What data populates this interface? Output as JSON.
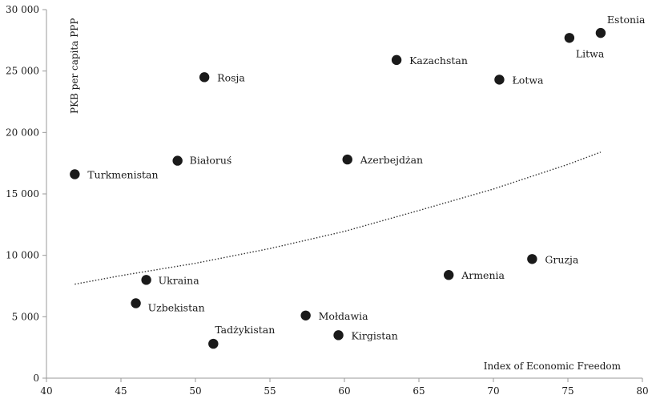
{
  "chart_data": {
    "type": "scatter",
    "title": "",
    "xlabel": "Index of Economic Freedom",
    "ylabel": "PKB per capita PPP",
    "xlim": [
      40,
      80
    ],
    "ylim": [
      0,
      30000
    ],
    "x_ticks": [
      "40",
      "45",
      "50",
      "55",
      "60",
      "65",
      "70",
      "75",
      "80"
    ],
    "y_ticks": [
      "0",
      "5 000",
      "10 000",
      "15 000",
      "20 000",
      "25 000",
      "30 000"
    ],
    "grid": false,
    "legend": "none",
    "point_color": "#1a1a1a",
    "points": [
      {
        "label": "Estonia",
        "x": 77.2,
        "y": 28100
      },
      {
        "label": "Litwa",
        "x": 75.1,
        "y": 27700
      },
      {
        "label": "Kazachstan",
        "x": 63.5,
        "y": 25900
      },
      {
        "label": "Rosja",
        "x": 50.6,
        "y": 24500
      },
      {
        "label": "Łotwa",
        "x": 70.4,
        "y": 24300
      },
      {
        "label": "Białoruś",
        "x": 48.8,
        "y": 17700
      },
      {
        "label": "Azerbejdżan",
        "x": 60.2,
        "y": 17800
      },
      {
        "label": "Turkmenistan",
        "x": 41.9,
        "y": 16600
      },
      {
        "label": "Gruzja",
        "x": 72.6,
        "y": 9700
      },
      {
        "label": "Armenia",
        "x": 67.0,
        "y": 8400
      },
      {
        "label": "Ukraina",
        "x": 46.7,
        "y": 8000
      },
      {
        "label": "Uzbekistan",
        "x": 46.0,
        "y": 6100
      },
      {
        "label": "Mołdawia",
        "x": 57.4,
        "y": 5100
      },
      {
        "label": "Kirgistan",
        "x": 59.6,
        "y": 3500
      },
      {
        "label": "Tadżykistan",
        "x": 51.2,
        "y": 2800
      }
    ],
    "trendline": {
      "style": "dotted",
      "x": [
        41.9,
        45,
        50,
        55,
        60,
        65,
        70,
        75,
        77.2
      ],
      "y": [
        7650,
        8350,
        9350,
        10550,
        11950,
        13650,
        15400,
        17400,
        18400
      ]
    }
  }
}
